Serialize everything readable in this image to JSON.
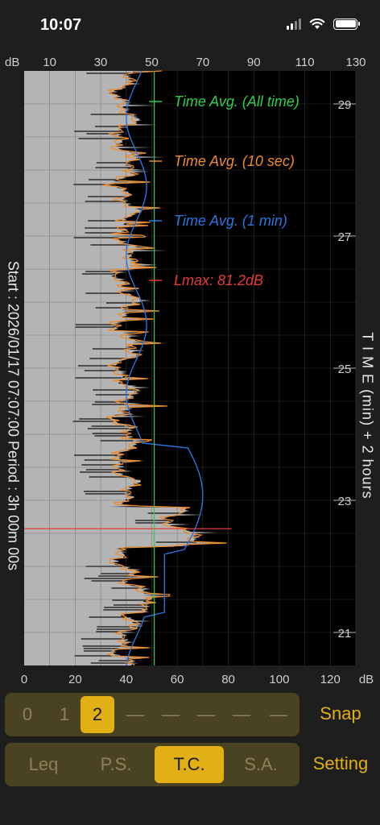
{
  "status_bar": {
    "time": "10:07"
  },
  "chart_data": {
    "type": "line",
    "top_axis": {
      "unit": "dB",
      "ticks": [
        "10",
        "30",
        "50",
        "70",
        "90",
        "110",
        "130"
      ]
    },
    "bottom_axis": {
      "unit": "dB",
      "ticks": [
        "0",
        "20",
        "40",
        "60",
        "80",
        "100",
        "120"
      ],
      "range": [
        0,
        130
      ]
    },
    "time_axis": {
      "ticks": [
        "29",
        "27",
        "25",
        "23",
        "21"
      ],
      "range_min": [
        20.5,
        29.5
      ]
    },
    "annotations": [
      {
        "label": "Time Avg. (All time)",
        "color": "#2ecc52"
      },
      {
        "label": "Time Avg. (10 sec)",
        "color": "#ee8b2a"
      },
      {
        "label": "Time Avg. (1 min)",
        "color": "#2b74e0"
      },
      {
        "label": "Lmax: 81.2dB",
        "color": "#e83a3a"
      }
    ],
    "lmax_db": 81.2,
    "lmax_time_min": 22.57,
    "time_avg_all_db": 51,
    "left_label": "Start : 2026/01/17 07:07:00  Period : 3h 00m 00s",
    "right_label": "T I M E (min) + 2 hours"
  },
  "snap_selector": {
    "items": [
      "0",
      "1",
      "2",
      "—",
      "—",
      "—",
      "—",
      "—"
    ],
    "selected": 2,
    "button": "Snap"
  },
  "mode_selector": {
    "items": [
      "Leq",
      "P.S.",
      "T.C.",
      "S.A."
    ],
    "selected": 2,
    "button": "Setting"
  }
}
